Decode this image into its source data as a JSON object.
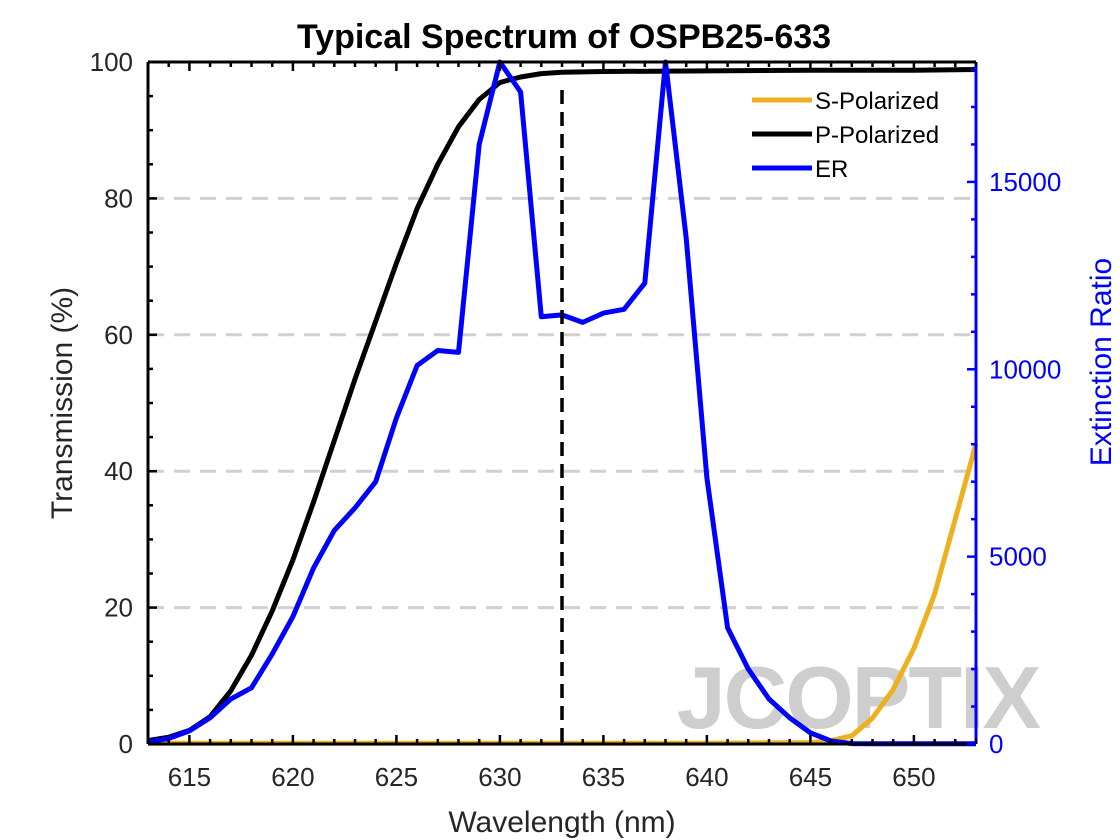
{
  "chart_data": {
    "type": "line",
    "title": "Typical Spectrum of OSPB25-633",
    "xlabel": "Wavelength (nm)",
    "ylabel_left": "Transmission (%)",
    "ylabel_right": "Extinction Ratio",
    "xlim": [
      613,
      653
    ],
    "ylim_left": [
      0,
      100
    ],
    "ylim_right": [
      0,
      18200
    ],
    "x_ticks": [
      615,
      620,
      625,
      630,
      635,
      640,
      645,
      650
    ],
    "y_ticks_left": [
      0,
      20,
      40,
      60,
      80,
      100
    ],
    "y_ticks_right": [
      0,
      5000,
      10000,
      15000
    ],
    "grid": "horizontal-dashed",
    "legend_position": "top-right",
    "reference_line": {
      "x": 633,
      "style": "dashed",
      "color": "#000000"
    },
    "watermark": "JCOPTIX",
    "series": [
      {
        "name": "S-Polarized",
        "axis": "left",
        "color": "#EDB120",
        "x": [
          613,
          640,
          645,
          646,
          647,
          648,
          649,
          650,
          651,
          652,
          653
        ],
        "y": [
          0.1,
          0.1,
          0.2,
          0.5,
          1.2,
          3.8,
          8.0,
          14.0,
          22.0,
          33.0,
          44.0
        ]
      },
      {
        "name": "P-Polarized",
        "axis": "left",
        "color": "#000000",
        "x": [
          613,
          614,
          615,
          616,
          617,
          618,
          619,
          620,
          621,
          622,
          623,
          624,
          625,
          626,
          627,
          628,
          629,
          630,
          631,
          632,
          633,
          635,
          640,
          645,
          650,
          653
        ],
        "y": [
          0.5,
          1.0,
          2.0,
          4.0,
          7.8,
          13.0,
          19.5,
          27.0,
          35.5,
          44.5,
          53.5,
          62.0,
          70.5,
          78.5,
          85.0,
          90.5,
          94.5,
          97.0,
          97.8,
          98.3,
          98.5,
          98.6,
          98.7,
          98.8,
          98.8,
          98.9
        ]
      },
      {
        "name": "ER",
        "axis": "right",
        "color": "#0000FF",
        "x": [
          613,
          614,
          615,
          616,
          617,
          618,
          619,
          620,
          621,
          622,
          623,
          624,
          625,
          626,
          627,
          628,
          629,
          630,
          631,
          632,
          633,
          634,
          635,
          636,
          637,
          638,
          639,
          640,
          641,
          642,
          643,
          644,
          645,
          646,
          647,
          648,
          650,
          653
        ],
        "y": [
          50,
          150,
          350,
          700,
          1200,
          1500,
          2400,
          3400,
          4700,
          5700,
          6300,
          7000,
          8700,
          10100,
          10500,
          10450,
          16000,
          18200,
          17400,
          11400,
          11450,
          11250,
          11500,
          11600,
          12300,
          18200,
          13500,
          7100,
          3100,
          2000,
          1200,
          700,
          300,
          80,
          10,
          5,
          5,
          5
        ]
      }
    ]
  }
}
